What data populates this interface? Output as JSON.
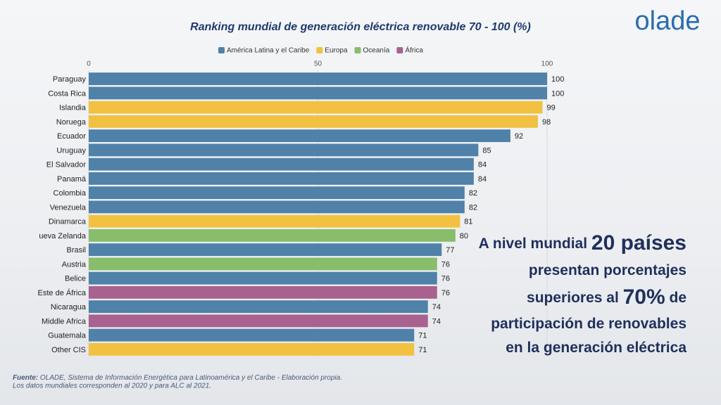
{
  "logo": "olade",
  "chart_data": {
    "type": "bar",
    "orientation": "horizontal",
    "title": "Ranking mundial de generación eléctrica renovable 70 - 100 (%)",
    "categories": [
      "Paraguay",
      "Costa Rica",
      "Islandia",
      "Noruega",
      "Ecuador",
      "Uruguay",
      "El Salvador",
      "Panamá",
      "Colombia",
      "Venezuela",
      "Dinamarca",
      "ueva Zelanda",
      "Brasil",
      "Austria",
      "Belice",
      "Este de África",
      "Nicaragua",
      "Middle Africa",
      "Guatemala",
      "Other CIS"
    ],
    "series": [
      {
        "name": "América Latina y el Caribe",
        "color": "#4f81a9",
        "values": [
          100,
          100,
          null,
          null,
          92,
          85,
          84,
          84,
          82,
          82,
          null,
          null,
          77,
          null,
          76,
          null,
          74,
          null,
          71,
          null
        ]
      },
      {
        "name": "Europa",
        "color": "#f2c141",
        "values": [
          null,
          null,
          99,
          98,
          null,
          null,
          null,
          null,
          null,
          null,
          81,
          null,
          null,
          null,
          null,
          null,
          null,
          null,
          null,
          71
        ]
      },
      {
        "name": "Oceanía",
        "color": "#87bd6b",
        "values": [
          null,
          null,
          null,
          null,
          null,
          null,
          null,
          null,
          null,
          null,
          null,
          80,
          null,
          76,
          null,
          null,
          null,
          null,
          null,
          null
        ]
      },
      {
        "name": "África",
        "color": "#a9618f",
        "values": [
          null,
          null,
          null,
          null,
          null,
          null,
          null,
          null,
          null,
          null,
          null,
          null,
          null,
          null,
          null,
          76,
          null,
          74,
          null,
          null
        ]
      }
    ],
    "xlim": [
      0,
      100
    ],
    "xticks": [
      0,
      50,
      100
    ],
    "grid": true,
    "legend": "top"
  },
  "annotation": [
    [
      {
        "text": "A nivel mundial ",
        "strong": false
      },
      {
        "text": "20 países",
        "strong": true
      }
    ],
    [
      {
        "text": "presentan porcentajes",
        "strong": false
      }
    ],
    [
      {
        "text": "superiores al ",
        "strong": false
      },
      {
        "text": "70%",
        "strong": true
      },
      {
        "text": " de",
        "strong": false
      }
    ],
    [
      {
        "text": "participación de renovables",
        "strong": false
      }
    ],
    [
      {
        "text": "en la generación eléctrica",
        "strong": false
      }
    ]
  ],
  "source": {
    "label": "Fuente:",
    "text": " OLADE, Sistema de Información Energética para Latinoamérica y el Caribe - Elaboración propia.",
    "note": "Los datos mundiales corresponden al 2020 y para ALC al 2021."
  }
}
